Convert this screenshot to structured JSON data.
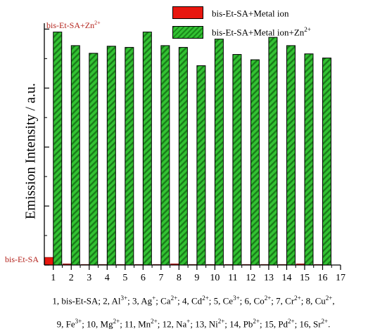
{
  "chart_data": {
    "type": "bar",
    "categories": [
      "1",
      "2",
      "3",
      "4",
      "5",
      "6",
      "7",
      "8",
      "9",
      "10",
      "11",
      "12",
      "13",
      "14",
      "15",
      "16"
    ],
    "x_tick_labels": [
      "1",
      "2",
      "3",
      "4",
      "5",
      "6",
      "7",
      "8",
      "9",
      "10",
      "11",
      "12",
      "13",
      "14",
      "15",
      "16",
      "17"
    ],
    "xlim": [
      0.5,
      17
    ],
    "ylim": [
      0,
      4.1
    ],
    "ylabel": "Emission Intensity / a.u.",
    "xlabel": "",
    "grid": false,
    "legend_position": "top-right",
    "series": [
      {
        "name": "bis-Et-SA+Metal ion",
        "values": [
          0.13,
          0.02,
          0.01,
          0.01,
          0.01,
          0.01,
          0.01,
          0.02,
          0.01,
          0.01,
          0.01,
          0.01,
          0.01,
          0.01,
          0.02,
          0.01
        ],
        "color": "#e8170f"
      },
      {
        "name": "bis-Et-SA+Metal ion+Zn2+",
        "values": [
          3.95,
          3.72,
          3.59,
          3.71,
          3.69,
          3.95,
          3.72,
          3.69,
          3.38,
          3.83,
          3.57,
          3.48,
          3.86,
          3.72,
          3.58,
          3.51
        ],
        "color": "#1a8a1a"
      }
    ],
    "annotations": [
      {
        "text_main": "bis-Et-SA+Zn",
        "text_sup": "2+"
      },
      {
        "text_main": "bis-Et-SA",
        "text_sup": ""
      }
    ]
  },
  "legend": {
    "items": [
      {
        "label": "bis-Et-SA+Metal ion",
        "sup": ""
      },
      {
        "label": "bis-Et-SA+Metal ion+Zn",
        "sup": "2+"
      }
    ]
  },
  "caption": {
    "line1": [
      [
        "1, bis-Et-SA; 2, Al",
        "3+"
      ],
      [
        "; 3, Ag",
        "+"
      ],
      [
        "; Ca",
        "2+"
      ],
      [
        "; 4, Cd",
        "2+"
      ],
      [
        "; 5, Ce",
        "3+"
      ],
      [
        "; 6, Co",
        "2+"
      ],
      [
        "; 7, Cr",
        "2+"
      ],
      [
        "; 8, Cu",
        "2+"
      ],
      [
        ",",
        ""
      ]
    ],
    "line2": [
      [
        "9, Fe",
        "3+"
      ],
      [
        "; 10, Mg",
        "2+"
      ],
      [
        "; 11, Mn",
        "2+"
      ],
      [
        "; 12, Na",
        "+"
      ],
      [
        "; 13, Ni",
        "2+"
      ],
      [
        "; 14, Pb",
        "2+"
      ],
      [
        "; 15, Pd",
        "2+"
      ],
      [
        "; 16, Sr",
        "2+"
      ],
      [
        ".",
        ""
      ]
    ]
  }
}
